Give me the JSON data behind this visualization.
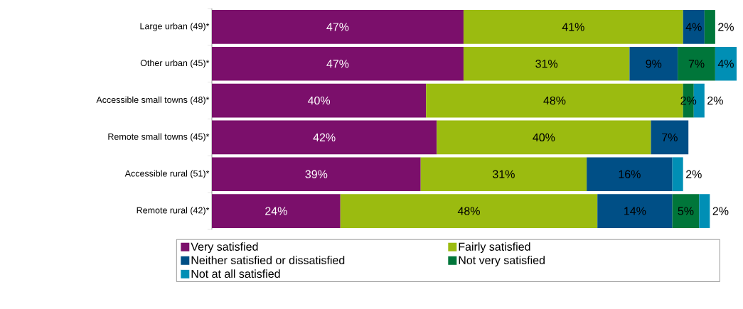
{
  "chart_data": {
    "type": "bar",
    "orientation": "horizontal",
    "stacked": true,
    "categories": [
      "Large urban (49)*",
      "Other urban (45)*",
      "Accessible small towns (48)*",
      "Remote small towns (45)*",
      "Accessible rural (51)*",
      "Remote rural (42)*"
    ],
    "series": [
      {
        "name": "Very satisfied",
        "color": "#7b0f6b",
        "values": [
          47,
          47,
          40,
          42,
          39,
          24
        ],
        "value_labels": [
          "47%",
          "47%",
          "40%",
          "42%",
          "39%",
          "24%"
        ]
      },
      {
        "name": "Fairly satisfied",
        "color": "#9bbb10",
        "values": [
          41,
          31,
          48,
          40,
          31,
          48
        ],
        "value_labels": [
          "41%",
          "31%",
          "48%",
          "40%",
          "31%",
          "48%"
        ]
      },
      {
        "name": "Neither satisfied or dissatisfied",
        "color": "#004f86",
        "values": [
          4,
          9,
          null,
          7,
          16,
          14
        ],
        "value_labels": [
          "4%",
          "9%",
          null,
          "7%",
          "16%",
          "14%"
        ]
      },
      {
        "name": "Not very satisfied",
        "color": "#00763a",
        "values": [
          2,
          7,
          2,
          null,
          null,
          5
        ],
        "value_labels": [
          "2%",
          "7%",
          "2%",
          null,
          null,
          "5%"
        ]
      },
      {
        "name": "Not at all satisfied",
        "color": "#008fb5",
        "values": [
          null,
          4,
          2,
          null,
          2,
          2
        ],
        "value_labels": [
          null,
          "4%",
          "2%",
          null,
          "2%",
          "2%"
        ]
      }
    ],
    "tick_labels": "y",
    "legend": "bottom"
  }
}
